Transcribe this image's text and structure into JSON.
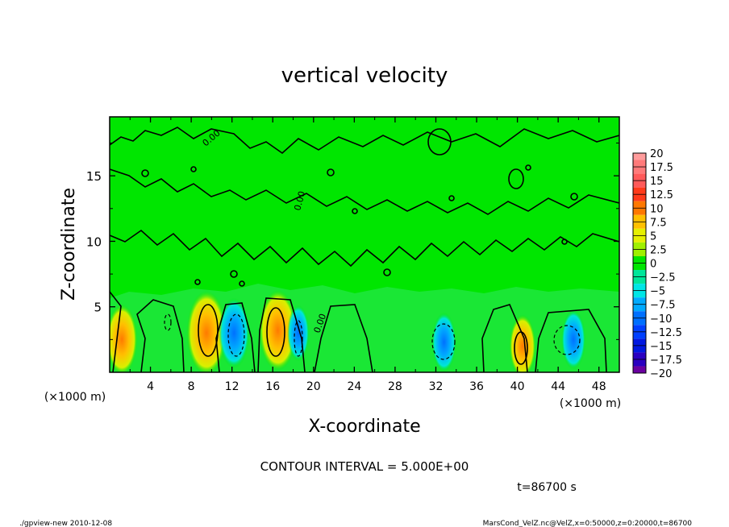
{
  "chart_data": {
    "type": "heatmap",
    "title": "vertical velocity",
    "xlabel": "X-coordinate",
    "ylabel": "Z-coordinate",
    "x_unit": "(×1000 m)",
    "x_ticks": [
      "4",
      "8",
      "12",
      "16",
      "20",
      "24",
      "28",
      "32",
      "36",
      "40",
      "44",
      "48"
    ],
    "y_ticks": [
      "5",
      "10",
      "15"
    ],
    "xlim": [
      0,
      50
    ],
    "ylim": [
      0,
      19.5
    ],
    "contour_interval_text": "CONTOUR INTERVAL = 5.000E+00",
    "time_text": "t=86700 s",
    "contour_labels": [
      "0.00",
      "0.00",
      "0.00"
    ],
    "colorbar": {
      "labels": [
        "20",
        "17.5",
        "15",
        "12.5",
        "10",
        "7.5",
        "5",
        "2.5",
        "0",
        "−2.5",
        "−5",
        "−7.5",
        "−10",
        "−12.5",
        "−15",
        "−17.5",
        "−20"
      ],
      "colors": [
        "#ff9c9c",
        "#ff7a7a",
        "#ff5a5a",
        "#ff3a1a",
        "#ff7800",
        "#ffc000",
        "#e6f000",
        "#a0f000",
        "#00e600",
        "#00e69a",
        "#00e6e6",
        "#00aaff",
        "#0070ff",
        "#0040ff",
        "#0018e0",
        "#2a00c0",
        "#6a00a0"
      ]
    },
    "anomalies": [
      {
        "x": 1.2,
        "z": 2.5,
        "value": 8
      },
      {
        "x": 9.5,
        "z": 3.0,
        "value": 12
      },
      {
        "x": 12.2,
        "z": 3.0,
        "value": -8
      },
      {
        "x": 16.5,
        "z": 3.2,
        "value": 11
      },
      {
        "x": 18.5,
        "z": 3.0,
        "value": -4
      },
      {
        "x": 32.8,
        "z": 2.3,
        "value": -5
      },
      {
        "x": 40.5,
        "z": 2.0,
        "value": 6
      },
      {
        "x": 45.5,
        "z": 2.5,
        "value": -5
      }
    ]
  },
  "footer": {
    "left": "./gpview-new   2010-12-08",
    "right": "MarsCond_VelZ.nc@VelZ,x=0:50000,z=0:20000,t=86700"
  }
}
